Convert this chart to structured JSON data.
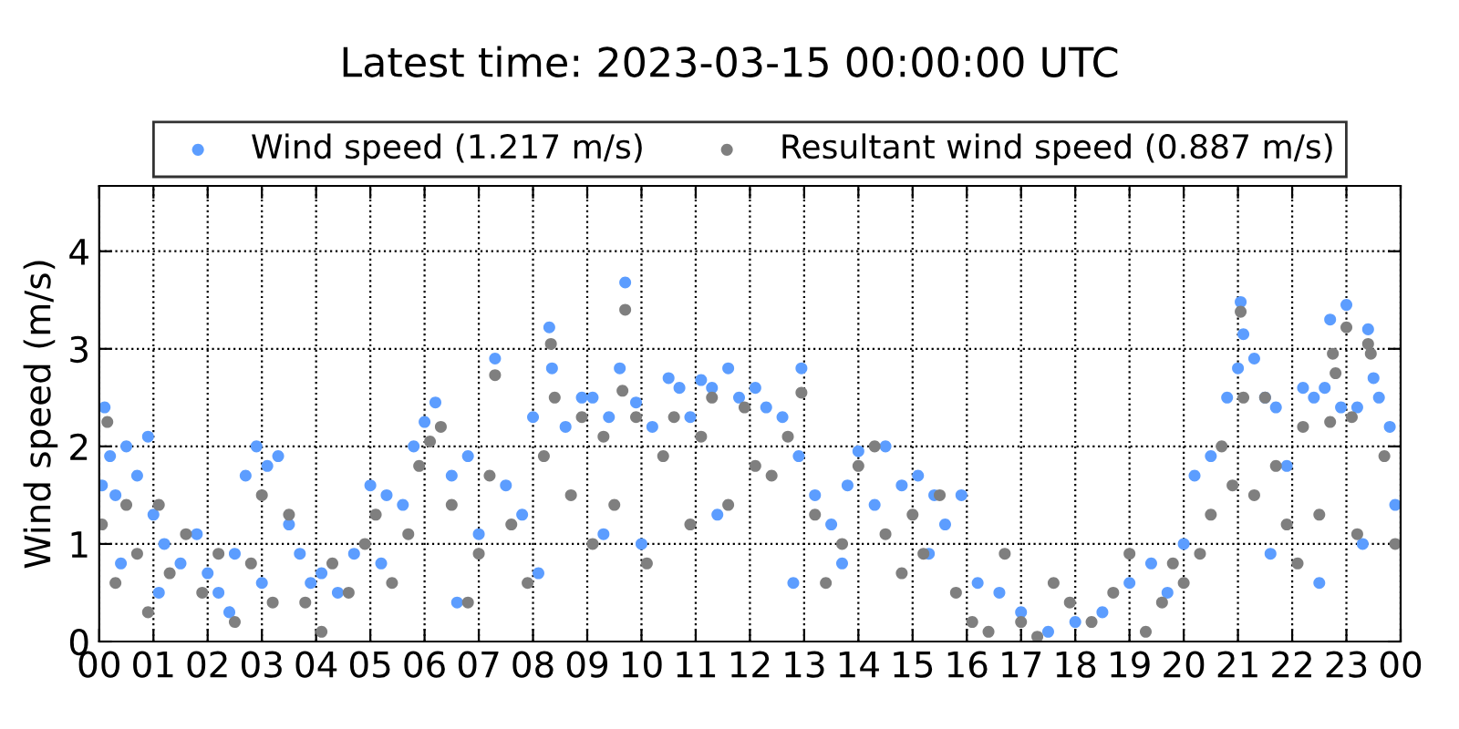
{
  "chart_data": {
    "type": "scatter",
    "title": "Latest time: 2023-03-15 00:00:00 UTC",
    "ylabel": "Wind speed (m/s)",
    "xlim": [
      0,
      24
    ],
    "xticks": [
      {
        "value": 0,
        "label": "00"
      },
      {
        "value": 1,
        "label": "01"
      },
      {
        "value": 2,
        "label": "02"
      },
      {
        "value": 3,
        "label": "03"
      },
      {
        "value": 4,
        "label": "04"
      },
      {
        "value": 5,
        "label": "05"
      },
      {
        "value": 6,
        "label": "06"
      },
      {
        "value": 7,
        "label": "07"
      },
      {
        "value": 8,
        "label": "08"
      },
      {
        "value": 9,
        "label": "09"
      },
      {
        "value": 10,
        "label": "10"
      },
      {
        "value": 11,
        "label": "11"
      },
      {
        "value": 12,
        "label": "12"
      },
      {
        "value": 13,
        "label": "13"
      },
      {
        "value": 14,
        "label": "14"
      },
      {
        "value": 15,
        "label": "15"
      },
      {
        "value": 16,
        "label": "16"
      },
      {
        "value": 17,
        "label": "17"
      },
      {
        "value": 18,
        "label": "18"
      },
      {
        "value": 19,
        "label": "19"
      },
      {
        "value": 20,
        "label": "20"
      },
      {
        "value": 21,
        "label": "21"
      },
      {
        "value": 22,
        "label": "22"
      },
      {
        "value": 23,
        "label": "23"
      },
      {
        "value": 24,
        "label": "00"
      }
    ],
    "ylim": [
      0,
      4.67
    ],
    "yticks": [
      0,
      1,
      2,
      3,
      4
    ],
    "grid": true,
    "legend": "top",
    "marker": "circle",
    "series": [
      {
        "name": "Wind speed (1.217 m/s)",
        "color": "#5c9dff",
        "x": [
          0.05,
          0.1,
          0.2,
          0.3,
          0.5,
          0.7,
          0.9,
          1.0,
          1.2,
          1.5,
          1.8,
          2.0,
          2.2,
          2.5,
          2.7,
          2.9,
          3.1,
          3.3,
          3.5,
          3.7,
          3.9,
          4.1,
          4.4,
          4.7,
          5.0,
          5.3,
          5.6,
          5.8,
          6.0,
          6.2,
          6.5,
          6.8,
          7.0,
          7.3,
          7.5,
          7.8,
          8.0,
          8.3,
          8.35,
          8.6,
          8.9,
          9.1,
          9.4,
          9.6,
          9.7,
          9.9,
          10.2,
          10.5,
          10.7,
          10.9,
          11.1,
          11.3,
          11.6,
          11.8,
          12.1,
          12.3,
          12.6,
          12.9,
          12.95,
          13.2,
          13.5,
          13.8,
          14.0,
          14.3,
          14.5,
          14.8,
          15.1,
          15.4,
          15.6,
          15.9,
          16.2,
          16.6,
          17.0,
          17.5,
          18.0,
          18.5,
          19.0,
          19.4,
          19.7,
          20.0,
          20.2,
          20.5,
          20.8,
          21.0,
          21.05,
          21.1,
          21.3,
          21.5,
          21.7,
          21.9,
          22.2,
          22.4,
          22.6,
          22.7,
          22.9,
          23.0,
          23.2,
          23.4,
          23.5,
          23.6,
          23.8,
          23.9,
          0.4,
          1.1,
          2.4,
          3.0,
          5.2,
          6.6,
          8.1,
          9.3,
          10.0,
          11.4,
          12.8,
          13.7,
          15.3,
          21.6,
          22.5,
          23.3
        ],
        "values": [
          1.6,
          2.4,
          1.9,
          1.5,
          2.0,
          1.7,
          2.1,
          1.3,
          1.0,
          0.8,
          1.1,
          0.7,
          0.5,
          0.9,
          1.7,
          2.0,
          1.8,
          1.9,
          1.2,
          0.9,
          0.6,
          0.7,
          0.5,
          0.9,
          1.6,
          1.5,
          1.4,
          2.0,
          2.25,
          2.45,
          1.7,
          1.9,
          1.1,
          2.9,
          1.6,
          1.3,
          2.3,
          3.22,
          2.8,
          2.2,
          2.5,
          2.5,
          2.3,
          2.8,
          3.68,
          2.45,
          2.2,
          2.7,
          2.6,
          2.3,
          2.68,
          2.6,
          2.8,
          2.5,
          2.6,
          2.4,
          2.3,
          1.9,
          2.8,
          1.5,
          1.2,
          1.6,
          1.95,
          1.4,
          2.0,
          1.6,
          1.7,
          1.5,
          1.2,
          1.5,
          0.6,
          0.5,
          0.3,
          0.1,
          0.2,
          0.3,
          0.6,
          0.8,
          0.5,
          1.0,
          1.7,
          1.9,
          2.5,
          2.8,
          3.48,
          3.15,
          2.9,
          2.5,
          2.4,
          1.8,
          2.6,
          2.5,
          2.6,
          3.3,
          2.4,
          3.45,
          2.4,
          3.2,
          2.7,
          2.5,
          2.2,
          1.4,
          0.8,
          0.5,
          0.3,
          0.6,
          0.8,
          0.4,
          0.7,
          1.1,
          1.0,
          1.3,
          0.6,
          0.8,
          0.9,
          0.9,
          0.6,
          1.0
        ]
      },
      {
        "name": "Resultant wind speed (0.887 m/s)",
        "color": "#7f7f7f",
        "x": [
          0.05,
          0.15,
          0.3,
          0.5,
          0.7,
          0.9,
          1.1,
          1.3,
          1.6,
          1.9,
          2.2,
          2.5,
          2.8,
          3.0,
          3.2,
          3.5,
          3.8,
          4.1,
          4.3,
          4.6,
          4.9,
          5.1,
          5.4,
          5.7,
          5.9,
          6.1,
          6.3,
          6.5,
          6.8,
          7.0,
          7.2,
          7.3,
          7.6,
          7.9,
          8.2,
          8.33,
          8.4,
          8.7,
          8.9,
          9.1,
          9.3,
          9.5,
          9.65,
          9.7,
          9.9,
          10.1,
          10.4,
          10.6,
          10.9,
          11.1,
          11.3,
          11.6,
          11.9,
          12.1,
          12.4,
          12.7,
          12.95,
          13.2,
          13.4,
          13.7,
          14.0,
          14.3,
          14.5,
          14.8,
          15.0,
          15.2,
          15.5,
          15.8,
          16.1,
          16.4,
          16.7,
          17.0,
          17.3,
          17.6,
          17.9,
          18.3,
          18.7,
          19.0,
          19.3,
          19.6,
          19.8,
          20.0,
          20.3,
          20.5,
          20.7,
          20.9,
          21.05,
          21.1,
          21.3,
          21.5,
          21.7,
          21.9,
          22.1,
          22.2,
          22.5,
          22.7,
          22.75,
          22.8,
          23.0,
          23.1,
          23.2,
          23.4,
          23.45,
          23.7,
          23.9
        ],
        "values": [
          1.2,
          2.25,
          0.6,
          1.4,
          0.9,
          0.3,
          1.4,
          0.7,
          1.1,
          0.5,
          0.9,
          0.2,
          0.8,
          1.5,
          0.4,
          1.3,
          0.4,
          0.1,
          0.8,
          0.5,
          1.0,
          1.3,
          0.6,
          1.1,
          1.8,
          2.05,
          2.2,
          1.4,
          0.4,
          0.9,
          1.7,
          2.73,
          1.2,
          0.6,
          1.9,
          3.05,
          2.5,
          1.5,
          2.3,
          1.0,
          2.1,
          1.4,
          2.57,
          3.4,
          2.3,
          0.8,
          1.9,
          2.3,
          1.2,
          2.1,
          2.5,
          1.4,
          2.4,
          1.8,
          1.7,
          2.1,
          2.55,
          1.3,
          0.6,
          1.0,
          1.8,
          2.0,
          1.1,
          0.7,
          1.3,
          0.9,
          1.5,
          0.5,
          0.2,
          0.1,
          0.9,
          0.2,
          0.05,
          0.6,
          0.4,
          0.2,
          0.5,
          0.9,
          0.1,
          0.4,
          0.8,
          0.6,
          0.9,
          1.3,
          2.0,
          1.6,
          3.38,
          2.5,
          1.5,
          2.5,
          1.8,
          1.2,
          0.8,
          2.2,
          1.3,
          2.25,
          2.95,
          2.75,
          3.22,
          2.3,
          1.1,
          3.05,
          2.95,
          1.9,
          1.0
        ]
      }
    ]
  }
}
